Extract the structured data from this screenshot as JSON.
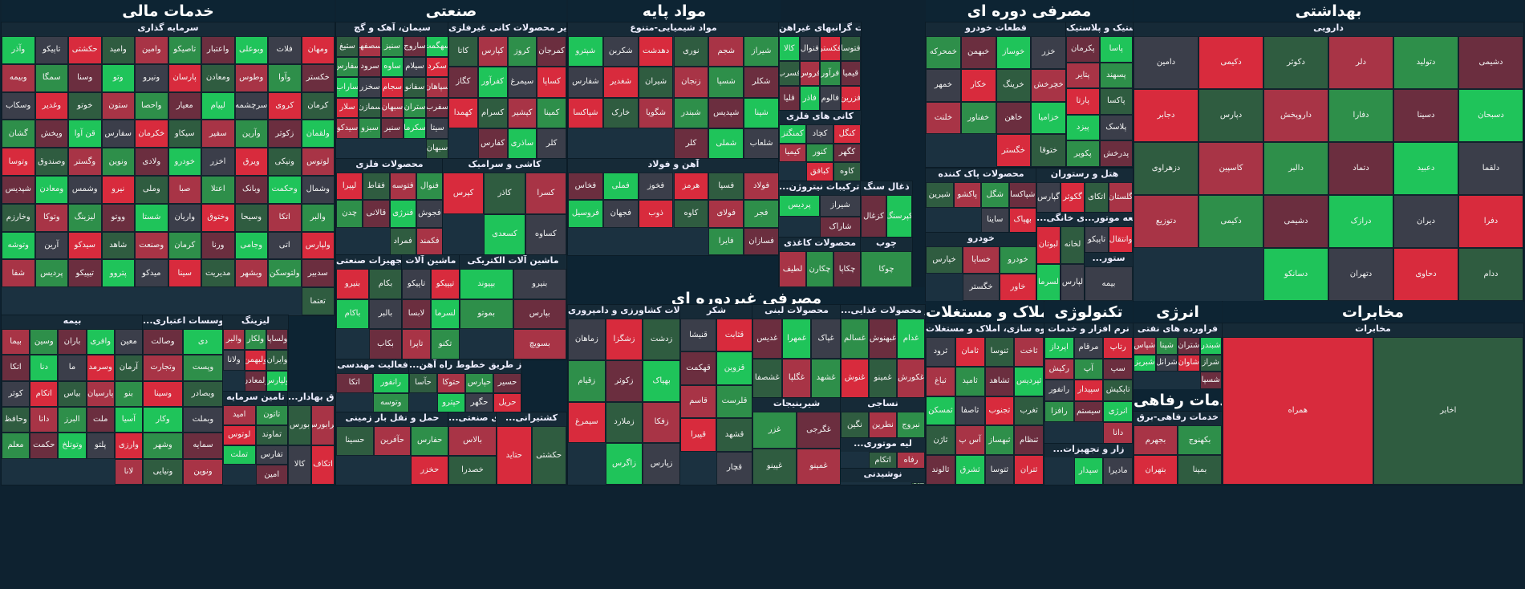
{
  "colors": {
    "strong_red": "#d82b3d",
    "red": "#a83446",
    "dark_red": "#6b2e3f",
    "neutral": "#3b3e4a",
    "dark_green": "#2f5c40",
    "green": "#2e8f4a",
    "strong_green": "#1fc45a"
  },
  "sectors": [
    {
      "title": "خدمات مالی",
      "groups": [
        {
          "title": "سرمایه گذاری",
          "tiles": [
            "ومهان",
            "فلات",
            "وبوعلی",
            "واعتبار",
            "تاصیکو",
            "وامین",
            "وامید",
            "حکشتی",
            "تاپیکو",
            "وآذر",
            "خکستر",
            "وآوا",
            "وطوس",
            "ومعادن",
            "پارسان",
            "ونیرو",
            "وتو",
            "وسنا",
            "سمگا",
            "وبیمه",
            "کرمان",
            "کروی",
            "سرچشمه",
            "لپیام",
            "معیار",
            "واحصا",
            "ستون",
            "خوتو",
            "وغدیر",
            "وسکاب",
            "ولقمان",
            "زکوثر",
            "وآرین",
            "سفیر",
            "سیکاو",
            "خکرمان",
            "سفارس",
            "قن آوا",
            "وپخش",
            "گشان",
            "لوتوس",
            "ونیکی",
            "ویرق",
            "اخزر",
            "خودرو",
            "ولادی",
            "ونوین",
            "وگستر",
            "وصندوق",
            "وتوسا",
            "وشمال",
            "وحکمت",
            "وبانک",
            "اعتلا",
            "صبا",
            "وملی",
            "نیرو",
            "وشمس",
            "ومعادن",
            "شپدیس",
            "والبر",
            "اتکا",
            "وسیحا",
            "وختوق",
            "واریان",
            "شستا",
            "ووتو",
            "لیزینگ",
            "وتوکا",
            "وخارزم",
            "ولپارس",
            "اتی",
            "وجامی",
            "ورنا",
            "کرمان",
            "وصنعت",
            "شاهد",
            "سیدکو",
            "آرین",
            "وتوشه",
            "سدبیر",
            "ولتوسکن",
            "وبشهر",
            "مدیریت",
            "سینا",
            "میدکو",
            "پتروو",
            "تیپیکو",
            "پردیس",
            "شفا",
            "تعتما"
          ]
        },
        {
          "title": "بیمه",
          "tiles": [
            "معین",
            "وافری",
            "باران",
            "وسین",
            "بیما",
            "آرمان",
            "وسرمد",
            "ما",
            "دنا",
            "اتکا",
            "بنو",
            "پارسیان",
            "بیاس",
            "اتکام",
            "کوثر",
            "آسیا",
            "ملت",
            "البرز",
            "دانا",
            "وحافظ",
            "وارزی",
            "پلتو",
            "وتوتلخ",
            "حکمت",
            "معلم",
            "لانا"
          ]
        },
        {
          "title": "...ا و موسسات اعتباری",
          "tiles": [
            "دی",
            "وصالت",
            "وپست",
            "وتجارت",
            "وبصادر",
            "وسینا",
            "وبملت",
            "وکار",
            "سمایه",
            "وشهر",
            "ونوین",
            "ونیایی"
          ]
        },
        {
          "title": "لیزینگ",
          "tiles": [
            "ولساپا",
            "ولکار",
            "والبر",
            "وایران",
            "ولبهمن",
            "ولانا",
            "ولپارس",
            "ولمعادن"
          ]
        },
        {
          "title": "تامین سرمایه",
          "tiles": [
            "تاتون",
            "امید",
            "تماوند",
            "لوتوس",
            "تفارس",
            "تملت",
            "امین"
          ]
        },
        {
          "title": "...اق بهادار",
          "tiles": [
            "فرابورس",
            "بورس",
            "اتکاف",
            "کالا"
          ]
        }
      ]
    },
    {
      "title": "صنعتی",
      "groups": [
        {
          "title": "سیمان، آهک و گچ",
          "tiles": [
            "سهگمت",
            "ساروج",
            "سنیز",
            "سصفها",
            "ستیغ",
            "سکرد",
            "سیلام",
            "ساوه",
            "سرود",
            "سفارس",
            "سپاهان",
            "سفانو",
            "سجام",
            "سخزر",
            "ساراب",
            "سفرب",
            "ستران",
            "سبهان",
            "سمازن",
            "سلار",
            "سیتا",
            "سکرما",
            "سنیر",
            "سبزو",
            "سیدکو",
            "سبهان"
          ]
        },
        {
          "title": "سایر محصولات کانی غیرفلزی",
          "tiles": [
            "کمرجان",
            "کروز",
            "کپارس",
            "کاتا",
            "کساپا",
            "سیمرغ",
            "کفرآور",
            "کگاز",
            "کمینا",
            "کپشیر",
            "کسرام",
            "کهمدا",
            "کلر",
            "ساذری",
            "کفارس"
          ]
        },
        {
          "title": "محصولات فلزی",
          "tiles": [
            "فنوال",
            "فتوسه",
            "فقاط",
            "لپیرا",
            "فجوش",
            "فنرژی",
            "قالانی",
            "چدن",
            "فکمند",
            "فمراد"
          ]
        },
        {
          "title": "کاشی و سرامیک",
          "tiles": [
            "کسرا",
            "کاذر",
            "کپرس",
            "کساوه",
            "کسعدی"
          ]
        },
        {
          "title": "تجهیزات صنعتی",
          "tiles": [
            "بکام",
            "بنیرو",
            "بالبر",
            "باکام",
            "بکاب"
          ]
        },
        {
          "title": "ماشین آلات",
          "tiles": [
            "تیپیکو",
            "تاپیکو",
            "لسرما",
            "لابسا",
            "تکنو",
            "تاپرا"
          ]
        },
        {
          "title": "ماشین آلات الکتریکی",
          "tiles": [
            "بنیرو",
            "بپیوند",
            "بپارس",
            "بموتو",
            "بسویچ"
          ]
        },
        {
          "title": "فعالیت مهندسی",
          "tiles": [
            "رانفور",
            "اتکا",
            "وتوسه"
          ]
        },
        {
          "title": "...و نقل از طریق خطوط راه آهن",
          "tiles": [
            "حسیر",
            "حپارس",
            "حتوکا",
            "حآسا",
            "حریل",
            "حگهر",
            "حپترو"
          ]
        },
        {
          "title": "حمل و نقل بار زمینی",
          "tiles": [
            "حفارس",
            "حآفرین",
            "حسینا",
            "حخزر"
          ]
        },
        {
          "title": "...ای صنعتی",
          "tiles": [
            "بالاس",
            "خصدرا"
          ]
        },
        {
          "title": "...کشتیرانی",
          "tiles": [
            "حکشتی",
            "حتاید"
          ]
        }
      ]
    },
    {
      "title": "مواد پایه",
      "groups": [
        {
          "title": "مواد شیمیایی-متنوع",
          "tiles": [
            "شیراز",
            "شجم",
            "نوری",
            "دهدشت",
            "شکربن",
            "شپترو",
            "شکلر",
            "شسپا",
            "زنجان",
            "شیران",
            "شغدیر",
            "شفارس",
            "شپنا",
            "شپدیس",
            "شبندر",
            "شگویا",
            "خارک",
            "شپاکسا",
            "شلعاب",
            "شملی",
            "کلر"
          ]
        },
        {
          "title": "آهن و فولاد",
          "tiles": [
            "فولاد",
            "فسپا",
            "هرمز",
            "فخوز",
            "فملی",
            "فخاس",
            "فجر",
            "فولای",
            "کاوه",
            "ذوب",
            "فجهان",
            "فروسیل",
            "فسازان",
            "فایرا"
          ]
        },
        {
          "title": "تولید فلزات گرانبهای غیراهن",
          "tiles": [
            "فتوسا",
            "فکستر",
            "فنوال",
            "کالا",
            "قیمیا",
            "فرآور",
            "فروس",
            "فسرب",
            "فزرین",
            "فالوم",
            "فاذر",
            "قلیا"
          ]
        },
        {
          "title": "کانی های فلزی",
          "tiles": [
            "کنگل",
            "کچاد",
            "کمنگنز",
            "کگهر",
            "کنور",
            "کیمیا",
            "کاوه",
            "کبافق"
          ]
        },
        {
          "title": "...ود و ترکیبات نیتروژن",
          "tiles": [
            "شیراز",
            "پردیس",
            "شاراک"
          ]
        },
        {
          "title": "ذغال سنگ",
          "tiles": [
            "کپرسنگ",
            "کزغال"
          ]
        },
        {
          "title": "محصولات کاغذی",
          "tiles": [
            "چکاپا",
            "چکارن",
            "لطیف"
          ]
        },
        {
          "title": "چوب",
          "tiles": [
            "چوکا"
          ]
        }
      ]
    },
    {
      "title": "مصرفی غیردوره ای",
      "groups": [
        {
          "title": "محصولات کشاورزی و دامپروری",
          "tiles": [
            "زدشت",
            "زشگزا",
            "زماهان",
            "بهپاک",
            "زکوثر",
            "زقیام",
            "زفکا",
            "زملارد",
            "سیمرغ",
            "زپارس",
            "زاگرس"
          ]
        },
        {
          "title": "شکر",
          "tiles": [
            "قثابت",
            "قنیشا",
            "قزوین",
            "قهکمت",
            "قلرست",
            "قاسم",
            "قشهد",
            "قپیرا",
            "قچار"
          ]
        },
        {
          "title": "محصولات لبنی",
          "tiles": [
            "غپاک",
            "غمهرا",
            "غدیس",
            "غشهد",
            "غگلپا",
            "غشصفا"
          ]
        },
        {
          "title": "...ر محصولات غذایی",
          "tiles": [
            "غدام",
            "غبهنوش",
            "غسالم",
            "غکورش",
            "غمینو",
            "غنوش"
          ]
        },
        {
          "title": "شیرینیجات",
          "tiles": [
            "غگرجی",
            "غزر",
            "غمینو",
            "غپینو"
          ]
        },
        {
          "title": "نساجی",
          "tiles": [
            "نبروج",
            "نطرین",
            "نگین"
          ]
        },
        {
          "title": "...لیه موتوری",
          "tiles": [
            "رفاه",
            "اتکام"
          ]
        },
        {
          "title": "نوشیدنی",
          "tiles": [
            "خوشگوار"
          ]
        }
      ]
    },
    {
      "title": "مصرفی دوره ای",
      "groups": [
        {
          "title": "قطعات خودرو",
          "tiles": [
            "خزر",
            "خوساز",
            "خبهمن",
            "خمحرکه",
            "خچرخش",
            "خرینگ",
            "خکار",
            "خمهر",
            "خزامیا",
            "خاهن",
            "خفناور",
            "خلنت",
            "ختوقا",
            "خگستر"
          ]
        },
        {
          "title": "لاستیک و پلاستیک",
          "tiles": [
            "پاسا",
            "پکرمان",
            "پسهند",
            "پتایر",
            "پاکسا",
            "پارتا",
            "پلاسک",
            "پیزد",
            "پدرخش",
            "پکویر"
          ]
        },
        {
          "title": "محصولات پاک کننده",
          "tiles": [
            "شپاکسا",
            "شگل",
            "پاکشو",
            "شیرین",
            "بهپاک",
            "ساینا"
          ]
        },
        {
          "title": "خودرو",
          "tiles": [
            "خودرو",
            "خساپا",
            "خپارس",
            "خاور",
            "خگستر"
          ]
        },
        {
          "title": "هتل و رستوران",
          "tiles": [
            "گلستان",
            "اتکای",
            "گکوثر",
            "گپارس"
          ]
        },
        {
          "title": "...ای خانگی",
          "tiles": [
            "لخانه",
            "لبوتان",
            "لپارس",
            "لسرما"
          ]
        },
        {
          "title": "...قطعه موتور",
          "tiles": [
            "وانتقال",
            "تاپیکو"
          ]
        },
        {
          "title": "...ستور",
          "tiles": [
            "بیمه"
          ]
        }
      ]
    },
    {
      "title": "بهداشتی",
      "groups": [
        {
          "title": "دارویی",
          "tiles": [
            "دشیمی",
            "دتولید",
            "دلر",
            "دکوثر",
            "دکیمی",
            "دامین",
            "دسبحان",
            "دسینا",
            "دفارا",
            "داروپخش",
            "دپارس",
            "دجابر",
            "دلقما",
            "دعبید",
            "دتماد",
            "دالبر",
            "کاسپین",
            "دزهراوی",
            "دفرا",
            "دیران",
            "درازک",
            "دشیمی",
            "دکیمی",
            "دتوزیع",
            "ددام",
            "دحاوی",
            "دتهران",
            "دسانکو"
          ]
        }
      ]
    },
    {
      "title": "املاک و مستغلات",
      "groups": [
        {
          "title": "انبوه سازی، املاک و مستغلات",
          "tiles": [
            "ثاخت",
            "ثنوسا",
            "ثامان",
            "ثرود",
            "ثپردیس",
            "ثشاهد",
            "ثامید",
            "ثباغ",
            "ثغرب",
            "ثجنوب",
            "ثاصفا",
            "ثمسکن",
            "ثنظام",
            "ثبهساز",
            "آس پ",
            "ثاژن",
            "ثتران",
            "ثتوسا",
            "ثشرق",
            "ثالوند"
          ]
        }
      ]
    },
    {
      "title": "تکنولوژی",
      "groups": [
        {
          "title": "نرم افزار و خدمات",
          "tiles": [
            "رتاپ",
            "مرقام",
            "اپرداز",
            "سپ",
            "آپ",
            "رکیش",
            "تاپکیش",
            "سپیدار",
            "رانفور",
            "انرژی",
            "سیستم",
            "رافزا",
            "دانا"
          ]
        },
        {
          "title": "...زار و تجهیزات",
          "tiles": [
            "مادیرا",
            "سپدار"
          ]
        }
      ]
    },
    {
      "title": "انرژی",
      "groups": [
        {
          "title": "فراورده های نفتی",
          "tiles": [
            "شبندر",
            "شتران",
            "شپنا",
            "شپاس",
            "شراز",
            "شاوان",
            "شرانل",
            "شبریز",
            "شسپا"
          ]
        }
      ]
    },
    {
      "title": "خدمات رفاهی",
      "groups": [
        {
          "title": "خدمات رفاهی-برق",
          "tiles": [
            "بکهنوج",
            "بجهرم",
            "بمپنا",
            "بتهران"
          ]
        }
      ]
    },
    {
      "title": "مخابرات",
      "groups": [
        {
          "title": "مخابرات",
          "tiles": [
            "اخابر",
            "همراه"
          ]
        }
      ]
    }
  ]
}
